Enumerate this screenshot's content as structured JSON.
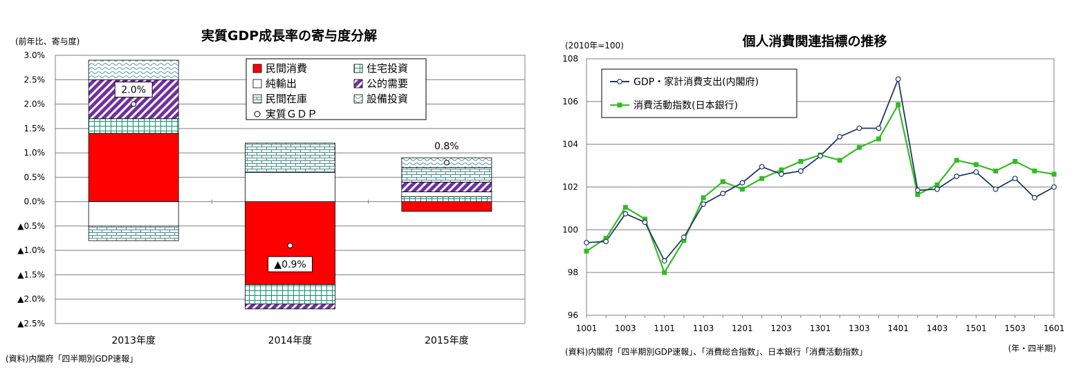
{
  "chart_data": [
    {
      "type": "bar",
      "stacked": true,
      "title": "実質GDP成長率の寄与度分解",
      "unit_label": "(前年比、寄与度)",
      "source": "(資料)内閣府「四半期別GDP速報」",
      "categories": [
        "2013年度",
        "2014年度",
        "2015年度"
      ],
      "ylim": [
        -2.5,
        3.0
      ],
      "yticks": [
        3.0,
        2.5,
        2.0,
        1.5,
        1.0,
        0.5,
        0.0,
        -0.5,
        -1.0,
        -1.5,
        -2.0,
        -2.5
      ],
      "ytick_labels": [
        "3.0%",
        "2.5%",
        "2.0%",
        "1.5%",
        "1.0%",
        "0.5%",
        "0.0%",
        "▲0.5%",
        "▲1.0%",
        "▲1.5%",
        "▲2.0%",
        "▲2.5%"
      ],
      "grid": true,
      "legend_placement": "top-right",
      "series": [
        {
          "name": "民間消費",
          "color": "#ff0000",
          "pattern": "solid",
          "values": [
            1.4,
            -1.7,
            -0.2
          ]
        },
        {
          "name": "住宅投資",
          "color": "#009966",
          "pattern": "grid",
          "values": [
            0.3,
            -0.4,
            0.1
          ]
        },
        {
          "name": "純輸出",
          "color": "#ffffff",
          "pattern": "blank",
          "values": [
            -0.5,
            0.6,
            0.1
          ]
        },
        {
          "name": "公的需要",
          "color": "#7030a0",
          "pattern": "diagonal",
          "values": [
            0.8,
            -0.1,
            0.2
          ]
        },
        {
          "name": "民間在庫",
          "color": "#4a8a8a",
          "pattern": "brick",
          "values": [
            -0.3,
            0.6,
            0.3
          ]
        },
        {
          "name": "設備投資",
          "color": "#5a9aaa",
          "pattern": "wave",
          "values": [
            0.4,
            0.0,
            0.2
          ]
        }
      ],
      "gdp": {
        "name": "実質ＧＤＰ",
        "values": [
          2.0,
          -0.9,
          0.8
        ],
        "labels": [
          "2.0%",
          "▲0.9%",
          "0.8%"
        ]
      }
    },
    {
      "type": "line",
      "title": "個人消費関連指標の推移",
      "unit_label": "(2010年=100)",
      "source": "(資料)内閣府「四半期別GDP速報」、「消費総合指数」、日本銀行「消費活動指数」",
      "x_unit_label": "(年・四半期)",
      "x": [
        "1001",
        "1002",
        "1003",
        "1004",
        "1101",
        "1102",
        "1103",
        "1104",
        "1201",
        "1202",
        "1203",
        "1204",
        "1301",
        "1302",
        "1303",
        "1304",
        "1401",
        "1402",
        "1403",
        "1404",
        "1501",
        "1502",
        "1503",
        "1504",
        "1601"
      ],
      "x_tick_labels": [
        "1001",
        "1003",
        "1101",
        "1103",
        "1201",
        "1203",
        "1301",
        "1303",
        "1401",
        "1403",
        "1501",
        "1503",
        "1601"
      ],
      "ylim": [
        96,
        108
      ],
      "yticks": [
        96,
        98,
        100,
        102,
        104,
        106,
        108
      ],
      "grid": true,
      "legend_placement": "top-left",
      "series": [
        {
          "name": "GDP・家計消費支出(内閣府)",
          "color": "#1f3864",
          "marker": "circle",
          "values": [
            99.4,
            99.45,
            100.75,
            100.35,
            98.55,
            99.65,
            101.2,
            101.7,
            102.2,
            102.95,
            102.6,
            102.75,
            103.45,
            104.35,
            104.75,
            104.75,
            107.05,
            101.85,
            101.9,
            102.5,
            102.7,
            101.9,
            102.4,
            101.5,
            102.0
          ]
        },
        {
          "name": "消費活動指数(日本銀行)",
          "color": "#33bb22",
          "marker": "square",
          "values": [
            99.0,
            99.6,
            101.05,
            100.5,
            98.0,
            99.5,
            101.5,
            102.25,
            101.9,
            102.4,
            102.8,
            103.2,
            103.5,
            103.25,
            103.85,
            104.25,
            105.85,
            101.65,
            102.1,
            103.25,
            103.05,
            102.75,
            103.2,
            102.75,
            102.6
          ]
        }
      ]
    }
  ]
}
